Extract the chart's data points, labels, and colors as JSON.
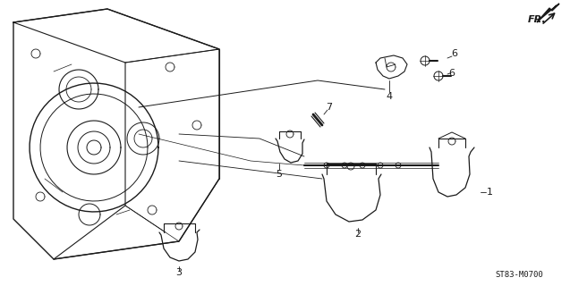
{
  "title": "",
  "background_color": "#ffffff",
  "part_number_text": "ST83-M0700",
  "fr_label": "FR.",
  "callout_numbers": [
    1,
    2,
    3,
    4,
    5,
    6,
    6,
    7
  ],
  "fig_width": 6.37,
  "fig_height": 3.2,
  "dpi": 100
}
